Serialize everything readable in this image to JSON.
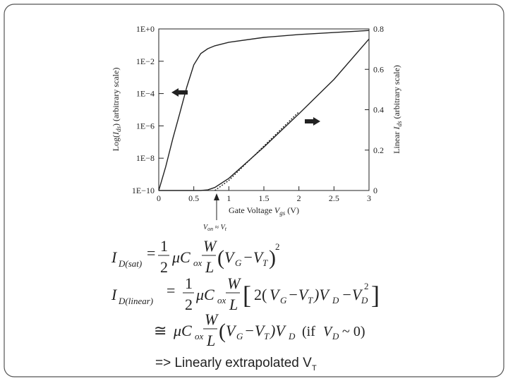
{
  "chart_data": {
    "type": "line",
    "xlabel": [
      "Gate Voltage ",
      "V",
      "gs",
      " (V)"
    ],
    "ylabel": [
      "Log(",
      "I",
      "ds",
      ") (arbitrary scale)"
    ],
    "y2label": [
      "Linear ",
      "I",
      "ds",
      " (arbitrary scale)"
    ],
    "annotation": [
      "V",
      "on",
      " ≈ ",
      "V",
      "t"
    ],
    "x": [
      0,
      0.1,
      0.2,
      0.3,
      0.4,
      0.5,
      0.6,
      0.7,
      0.8,
      1.0,
      1.5,
      2.0,
      2.5,
      3.0
    ],
    "series": [
      {
        "color": "#222222",
        "values": [
          1e-10,
          3e-09,
          1.6e-07,
          6e-06,
          0.00025,
          0.006,
          0.03,
          0.06,
          0.09,
          0.15,
          0.3,
          0.45,
          0.6,
          0.8
        ]
      },
      {
        "color": "#222222",
        "axis": "y2",
        "values": [
          0,
          0,
          0,
          0,
          0,
          0,
          0,
          0.003,
          0.015,
          0.06,
          0.215,
          0.38,
          0.55,
          0.75
        ]
      },
      {
        "color": "#222222",
        "axis": "y2",
        "dashed": true,
        "values": [
          null,
          null,
          null,
          null,
          null,
          null,
          null,
          null,
          0,
          0.05,
          0.22,
          0.39,
          null,
          null
        ]
      }
    ],
    "xlim": [
      0,
      3
    ],
    "xticks": [
      0,
      0.5,
      1,
      1.5,
      2,
      2.5,
      3
    ],
    "ylim": [
      1e-10,
      1
    ],
    "ylog": true,
    "yticks": [
      {
        "value": 1e-10,
        "label": "1E−10"
      },
      {
        "value": 1e-08,
        "label": "1E−8"
      },
      {
        "value": 1e-06,
        "label": "1E−6"
      },
      {
        "value": 0.0001,
        "label": "1E−4"
      },
      {
        "value": 0.01,
        "label": "1E−2"
      },
      {
        "value": 1,
        "label": "1E+0"
      }
    ],
    "y2lim": [
      0,
      0.8
    ],
    "y2ticks": [
      0,
      0.2,
      0.4,
      0.6,
      0.8
    ]
  },
  "equations": [
    [
      "I",
      "D(sat)",
      "=",
      "1",
      "2",
      "μC",
      "ox",
      "W",
      "L",
      "(",
      "V",
      "G",
      "−V",
      "T",
      ")",
      "2"
    ],
    [
      "I",
      "D(linear)",
      "=",
      "1",
      "2",
      "μC",
      "ox",
      "W",
      "L",
      "[",
      "2(",
      "V",
      "G",
      "−V",
      "T",
      ")V",
      "D",
      "−V",
      "D",
      "2",
      "]"
    ],
    [
      "≅",
      "μC",
      "ox",
      "W",
      "L",
      "(",
      "V",
      "G",
      "−V",
      "T",
      ")V",
      "D",
      "(if ",
      "V",
      "D",
      " ~ 0)"
    ],
    [
      "=> Linearly extrapolated V",
      "T"
    ]
  ]
}
